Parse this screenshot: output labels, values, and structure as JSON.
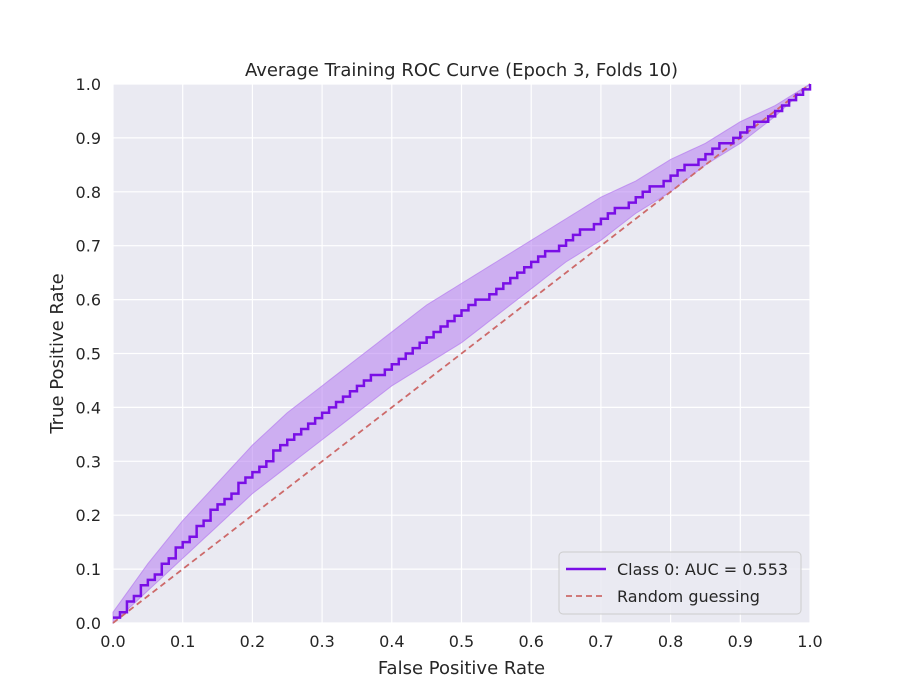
{
  "chart_data": {
    "type": "line",
    "title": "Average Training ROC Curve (Epoch 3, Folds 10)",
    "xlabel": "False Positive Rate",
    "ylabel": "True Positive Rate",
    "xlim": [
      0.0,
      1.0
    ],
    "ylim": [
      0.0,
      1.0
    ],
    "x_ticks": [
      "0.0",
      "0.1",
      "0.2",
      "0.3",
      "0.4",
      "0.5",
      "0.6",
      "0.7",
      "0.8",
      "0.9",
      "1.0"
    ],
    "y_ticks": [
      "0.0",
      "0.1",
      "0.2",
      "0.3",
      "0.4",
      "0.5",
      "0.6",
      "0.7",
      "0.8",
      "0.9",
      "1.0"
    ],
    "grid": true,
    "legend_position": "lower-right",
    "series": [
      {
        "name": "Class 0: AUC = 0.553",
        "style": "step",
        "color": "#7a0ee6",
        "x": [
          0.0,
          0.05,
          0.1,
          0.15,
          0.2,
          0.25,
          0.3,
          0.35,
          0.4,
          0.45,
          0.5,
          0.55,
          0.6,
          0.65,
          0.7,
          0.75,
          0.8,
          0.85,
          0.9,
          0.95,
          1.0
        ],
        "y": [
          0.01,
          0.08,
          0.15,
          0.22,
          0.28,
          0.34,
          0.39,
          0.44,
          0.48,
          0.53,
          0.58,
          0.62,
          0.67,
          0.71,
          0.75,
          0.79,
          0.83,
          0.87,
          0.91,
          0.95,
          1.0
        ],
        "band_upper": [
          0.02,
          0.11,
          0.19,
          0.26,
          0.33,
          0.39,
          0.44,
          0.49,
          0.54,
          0.59,
          0.63,
          0.67,
          0.71,
          0.75,
          0.79,
          0.82,
          0.86,
          0.89,
          0.93,
          0.96,
          1.0
        ],
        "band_lower": [
          0.0,
          0.06,
          0.12,
          0.18,
          0.24,
          0.29,
          0.34,
          0.39,
          0.44,
          0.48,
          0.52,
          0.57,
          0.62,
          0.67,
          0.71,
          0.76,
          0.8,
          0.85,
          0.89,
          0.94,
          1.0
        ]
      },
      {
        "name": "Random guessing",
        "style": "dashed",
        "color": "#cd6a6a",
        "x": [
          0.0,
          1.0
        ],
        "y": [
          0.0,
          1.0
        ]
      }
    ],
    "colors": {
      "plot_background": "#eaeaf2",
      "grid": "#ffffff",
      "band_fill": "#b57cf0",
      "legend_background": "#eaeaf2",
      "legend_border": "#cccccc"
    }
  }
}
